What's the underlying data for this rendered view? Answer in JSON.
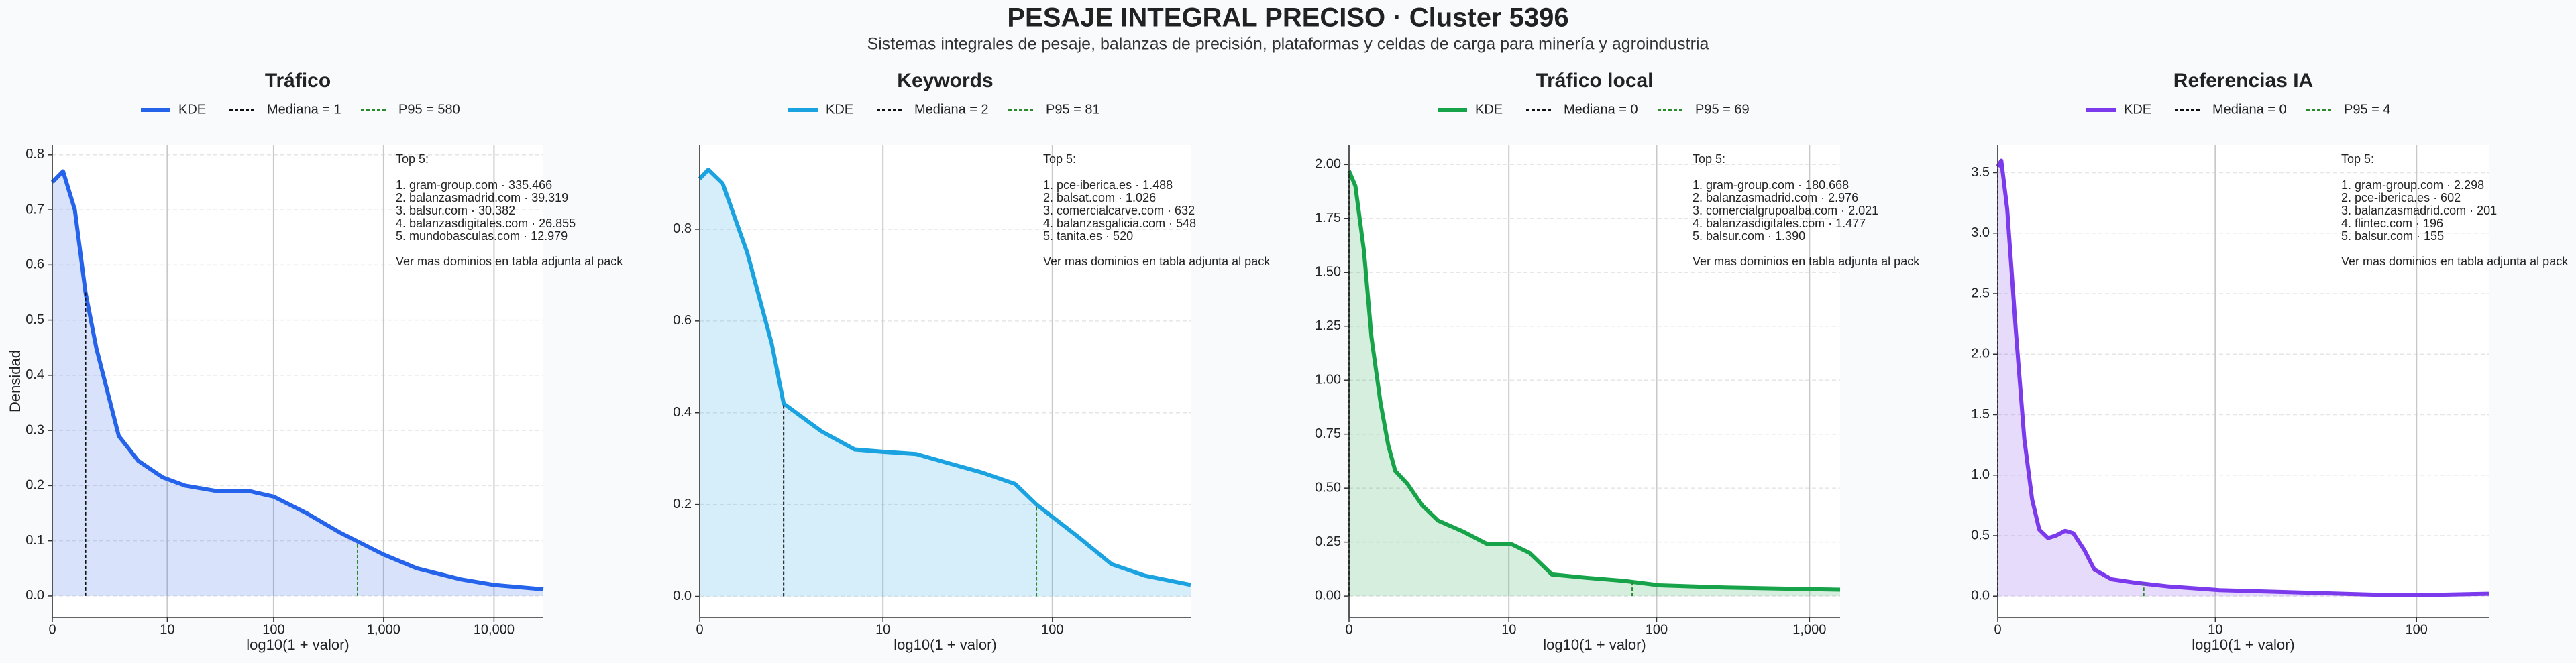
{
  "title": "PESAJE INTEGRAL PRECISO · Cluster 5396",
  "subtitle": "Sistemas integrales de pesaje, balanzas de precisión, plataformas y celdas de carga para minería y agroindustria",
  "chart_data": [
    {
      "type": "line",
      "title": "Tráfico",
      "x_label": "log10(1 + valor)",
      "y_label": "Densidad",
      "xscale": "log1p",
      "fill": true,
      "grid": true,
      "xlim": [
        0,
        28000
      ],
      "xticks": [
        0,
        10,
        100,
        {
          "value": 1000,
          "label": "1,000"
        },
        {
          "value": 10000,
          "label": "10,000"
        }
      ],
      "ylim": [
        -0.039,
        0.818
      ],
      "yticks": [
        {
          "value": 0,
          "label": "0.0"
        },
        0.1,
        0.2,
        0.3,
        0.4,
        0.5,
        0.6,
        0.7,
        0.8
      ],
      "x": [
        0,
        0.25,
        0.6,
        1,
        1.5,
        3,
        5,
        9,
        15,
        30,
        60,
        100,
        200,
        400,
        1000,
        2000,
        5000,
        10000,
        28000
      ],
      "series": [
        {
          "name": "KDE",
          "color": "#2563eb",
          "values": [
            0.75,
            0.77,
            0.7,
            0.55,
            0.45,
            0.29,
            0.245,
            0.215,
            0.2,
            0.19,
            0.19,
            0.18,
            0.15,
            0.115,
            0.075,
            0.05,
            0.03,
            0.02,
            0.012
          ]
        }
      ],
      "median": {
        "label": "Mediana = 1",
        "value": 1,
        "color": "#111111"
      },
      "p95": {
        "label": "P95 = 580",
        "value": 580,
        "color": "#2a8a2a"
      },
      "annotation": {
        "title": "Top 5:",
        "items": [
          "1. gram-group.com · 335.466",
          "2. balanzasmadrid.com · 39.319",
          "3. balsur.com · 30.382",
          "4. balanzasdigitales.com · 26.855",
          "5. mundobasculas.com · 12.979"
        ],
        "note": "Ver mas dominios en tabla adjunta al pack"
      }
    },
    {
      "type": "line",
      "title": "Keywords",
      "x_label": "log10(1 + valor)",
      "xscale": "log1p",
      "fill": true,
      "grid": true,
      "xlim": [
        0,
        616
      ],
      "xticks": [
        0,
        10,
        100
      ],
      "ylim": [
        -0.046,
        0.984
      ],
      "yticks": [
        {
          "value": 0,
          "label": "0.0"
        },
        0.2,
        0.4,
        0.6,
        0.8
      ],
      "x": [
        0,
        0.12,
        0.35,
        0.86,
        1.57,
        2,
        3.9,
        6.6,
        10,
        16,
        25,
        39,
        61,
        81,
        140,
        218,
        338,
        616
      ],
      "series": [
        {
          "name": "KDE",
          "color": "#1aa3e0",
          "values": [
            0.91,
            0.93,
            0.9,
            0.75,
            0.55,
            0.42,
            0.36,
            0.32,
            0.315,
            0.31,
            0.29,
            0.27,
            0.245,
            0.2,
            0.13,
            0.07,
            0.045,
            0.025
          ]
        }
      ],
      "median": {
        "label": "Mediana = 2",
        "value": 2,
        "color": "#111111"
      },
      "p95": {
        "label": "P95 = 81",
        "value": 81,
        "color": "#2a8a2a"
      },
      "annotation": {
        "title": "Top 5:",
        "items": [
          "1. pce-iberica.es · 1.488",
          "2. balsat.com · 1.026",
          "3. comercialcarve.com · 632",
          "4. balanzasgalicia.com · 548",
          "5. tanita.es · 520"
        ],
        "note": "Ver mas dominios en tabla adjunta al pack"
      }
    },
    {
      "type": "line",
      "title": "Tráfico local",
      "x_label": "log10(1 + valor)",
      "xscale": "log1p",
      "fill": true,
      "grid": true,
      "xlim": [
        0,
        1584
      ],
      "xticks": [
        0,
        10,
        100,
        {
          "value": 1000,
          "label": "1,000"
        }
      ],
      "ylim": [
        -0.099,
        2.091
      ],
      "yticks": [
        {
          "value": 0,
          "label": "0.00"
        },
        0.25,
        {
          "value": 0.5,
          "label": "0.50"
        },
        0.75,
        {
          "value": 1,
          "label": "1.00"
        },
        1.25,
        {
          "value": 1.5,
          "label": "1.50"
        },
        1.75,
        {
          "value": 2,
          "label": "2.00"
        }
      ],
      "x": [
        0,
        0.1,
        0.25,
        0.4,
        0.6,
        0.8,
        1,
        1.4,
        2,
        2.8,
        4.5,
        7,
        10.5,
        14,
        20,
        34,
        62,
        104,
        280,
        1584
      ],
      "series": [
        {
          "name": "KDE",
          "color": "#16a34a",
          "values": [
            1.97,
            1.9,
            1.6,
            1.2,
            0.9,
            0.7,
            0.58,
            0.52,
            0.42,
            0.35,
            0.3,
            0.24,
            0.24,
            0.2,
            0.1,
            0.085,
            0.07,
            0.05,
            0.04,
            0.03
          ]
        }
      ],
      "median": {
        "label": "Mediana = 0",
        "value": 0,
        "color": "#111111"
      },
      "p95": {
        "label": "P95 = 69",
        "value": 69,
        "color": "#2a8a2a"
      },
      "annotation": {
        "title": "Top 5:",
        "items": [
          "1. gram-group.com · 180.668",
          "2. balanzasmadrid.com · 2.976",
          "3. comercialgrupoalba.com · 2.021",
          "4. balanzasdigitales.com · 1.477",
          "5. balsur.com · 1.390"
        ],
        "note": "Ver mas dominios en tabla adjunta al pack"
      }
    },
    {
      "type": "line",
      "title": "Referencias IA",
      "x_label": "log10(1 + valor)",
      "xscale": "log1p",
      "fill": true,
      "grid": true,
      "xlim": [
        0,
        223
      ],
      "xticks": [
        0,
        10,
        100
      ],
      "ylim": [
        -0.176,
        3.73
      ],
      "yticks": [
        {
          "value": 0,
          "label": "0.0"
        },
        0.5,
        {
          "value": 1,
          "label": "1.0"
        },
        1.5,
        {
          "value": 2,
          "label": "2.0"
        },
        2.5,
        {
          "value": 3,
          "label": "3.0"
        },
        3.5
      ],
      "x": [
        0,
        0.04,
        0.11,
        0.22,
        0.34,
        0.46,
        0.58,
        0.74,
        0.9,
        1.1,
        1.3,
        1.6,
        1.9,
        2.5,
        3.6,
        5.6,
        10.5,
        27,
        68,
        119,
        223
      ],
      "series": [
        {
          "name": "KDE",
          "color": "#7c3aed",
          "values": [
            3.55,
            3.6,
            3.2,
            2.2,
            1.3,
            0.8,
            0.55,
            0.48,
            0.5,
            0.54,
            0.52,
            0.38,
            0.22,
            0.14,
            0.11,
            0.08,
            0.05,
            0.03,
            0.01,
            0.01,
            0.02
          ]
        }
      ],
      "median": {
        "label": "Mediana = 0",
        "value": 0,
        "color": "#111111"
      },
      "p95": {
        "label": "P95 = 4",
        "value": 4,
        "color": "#2a8a2a"
      },
      "annotation": {
        "title": "Top 5:",
        "items": [
          "1. gram-group.com · 2.298",
          "2. pce-iberica.es · 602",
          "3. balanzasmadrid.com · 201",
          "4. flintec.com · 196",
          "5. balsur.com · 155"
        ],
        "note": "Ver mas dominios en tabla adjunta al pack"
      }
    }
  ]
}
